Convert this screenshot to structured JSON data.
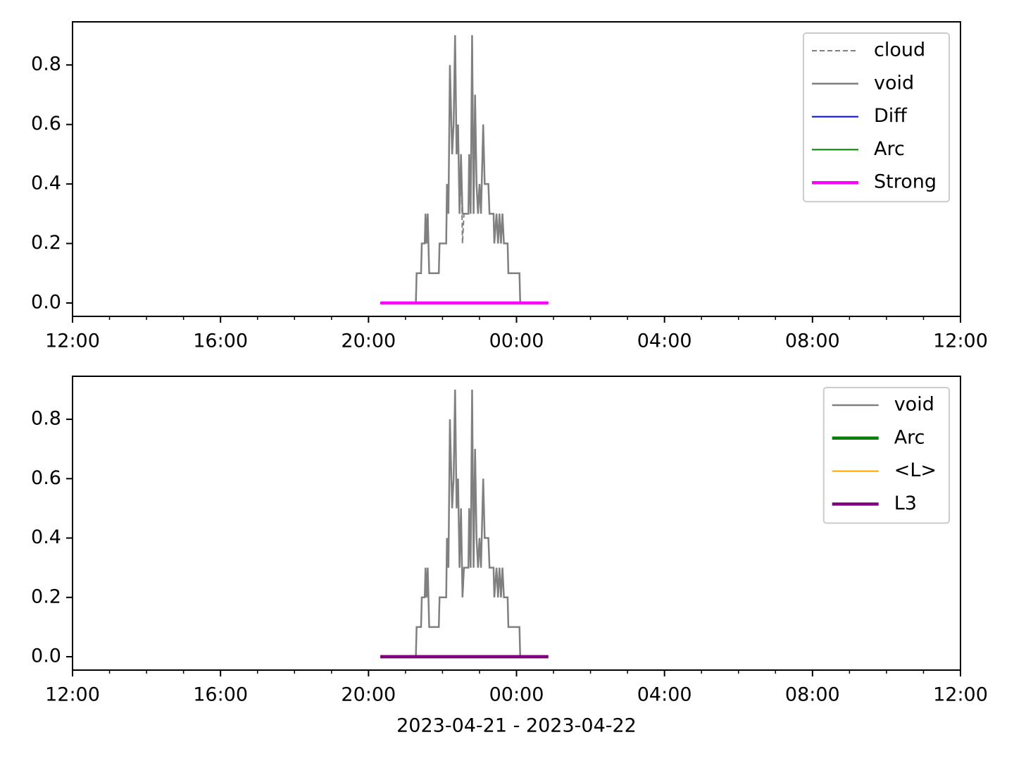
{
  "chart_data": [
    {
      "type": "line",
      "xlim": [
        12,
        36
      ],
      "ylim": [
        -0.045,
        0.945
      ],
      "xticks": [
        {
          "value": 12,
          "label": "12:00"
        },
        {
          "value": 16,
          "label": "16:00"
        },
        {
          "value": 20,
          "label": "20:00"
        },
        {
          "value": 24,
          "label": "00:00"
        },
        {
          "value": 28,
          "label": "04:00"
        },
        {
          "value": 32,
          "label": "08:00"
        },
        {
          "value": 36,
          "label": "12:00"
        }
      ],
      "xminorticks": [
        13,
        14,
        15,
        17,
        18,
        19,
        21,
        22,
        23,
        25,
        26,
        27,
        29,
        30,
        31,
        33,
        34,
        35
      ],
      "yticks": [
        {
          "value": 0,
          "label": "0.0"
        },
        0.2,
        0.4,
        0.6,
        0.8
      ],
      "legend": "upper right",
      "series": [
        {
          "name": "cloud",
          "color": "#808080",
          "width": 2,
          "dash": true,
          "x": [
            21.2,
            21.28,
            21.3,
            21.42,
            21.44,
            21.52,
            21.54,
            21.57,
            21.6,
            21.64,
            21.9,
            21.92,
            22.1,
            22.12,
            22.16,
            22.2,
            22.26,
            22.3,
            22.34,
            22.38,
            22.42,
            22.46,
            22.5,
            22.54,
            22.58,
            22.7,
            22.72,
            22.76,
            22.8,
            22.84,
            22.88,
            22.92,
            22.96,
            23.0,
            23.04,
            23.1,
            23.14,
            23.24,
            23.27,
            23.38,
            23.4,
            23.46,
            23.5,
            23.54,
            23.58,
            23.62,
            23.66,
            23.76,
            23.78,
            24.08,
            24.1,
            24.2
          ],
          "values": [
            0,
            0,
            0.1,
            0.1,
            0.2,
            0.2,
            0.3,
            0.2,
            0.3,
            0.1,
            0.1,
            0.2,
            0.2,
            0.4,
            0.3,
            0.8,
            0.5,
            0.6,
            0.9,
            0.5,
            0.6,
            0.3,
            0.5,
            0.2,
            0.3,
            0.3,
            0.5,
            0.3,
            0.9,
            0.3,
            0.7,
            0.4,
            0.3,
            0.4,
            0.3,
            0.6,
            0.4,
            0.4,
            0.3,
            0.3,
            0.2,
            0.3,
            0.2,
            0.3,
            0.2,
            0.3,
            0.2,
            0.2,
            0.1,
            0.1,
            0,
            0
          ]
        },
        {
          "name": "void",
          "color": "#808080",
          "width": 2.5,
          "x": [
            21.2,
            21.28,
            21.3,
            21.42,
            21.44,
            21.52,
            21.54,
            21.57,
            21.6,
            21.64,
            21.9,
            21.92,
            22.1,
            22.12,
            22.16,
            22.2,
            22.26,
            22.3,
            22.34,
            22.38,
            22.42,
            22.46,
            22.5,
            22.54,
            22.58,
            22.7,
            22.72,
            22.76,
            22.8,
            22.84,
            22.88,
            22.92,
            22.96,
            23.0,
            23.04,
            23.1,
            23.14,
            23.24,
            23.27,
            23.38,
            23.4,
            23.46,
            23.5,
            23.54,
            23.58,
            23.62,
            23.66,
            23.76,
            23.78,
            24.08,
            24.1,
            24.2
          ],
          "values": [
            0,
            0,
            0.1,
            0.1,
            0.2,
            0.2,
            0.3,
            0.2,
            0.3,
            0.1,
            0.1,
            0.2,
            0.2,
            0.4,
            0.3,
            0.8,
            0.5,
            0.6,
            0.9,
            0.5,
            0.6,
            0.3,
            0.5,
            0.3,
            0.3,
            0.3,
            0.5,
            0.3,
            0.9,
            0.3,
            0.7,
            0.4,
            0.3,
            0.4,
            0.3,
            0.6,
            0.4,
            0.4,
            0.3,
            0.3,
            0.2,
            0.3,
            0.2,
            0.3,
            0.2,
            0.3,
            0.2,
            0.2,
            0.1,
            0.1,
            0,
            0
          ]
        },
        {
          "name": "Diff",
          "color": "#0000ff",
          "width": 2,
          "x": [
            20.32,
            24.86
          ],
          "values": [
            0,
            0
          ]
        },
        {
          "name": "Arc",
          "color": "#008000",
          "width": 2,
          "x": [
            20.32,
            24.86
          ],
          "values": [
            0,
            0
          ]
        },
        {
          "name": "Strong",
          "color": "#ff00ff",
          "width": 4.5,
          "x": [
            20.32,
            24.86
          ],
          "values": [
            0,
            0
          ]
        }
      ]
    },
    {
      "type": "line",
      "xlabel": "2023-04-21 - 2023-04-22",
      "xlim": [
        12,
        36
      ],
      "ylim": [
        -0.045,
        0.945
      ],
      "xticks": [
        {
          "value": 12,
          "label": "12:00"
        },
        {
          "value": 16,
          "label": "16:00"
        },
        {
          "value": 20,
          "label": "20:00"
        },
        {
          "value": 24,
          "label": "00:00"
        },
        {
          "value": 28,
          "label": "04:00"
        },
        {
          "value": 32,
          "label": "08:00"
        },
        {
          "value": 36,
          "label": "12:00"
        }
      ],
      "xminorticks": [
        13,
        14,
        15,
        17,
        18,
        19,
        21,
        22,
        23,
        25,
        26,
        27,
        29,
        30,
        31,
        33,
        34,
        35
      ],
      "yticks": [
        {
          "value": 0,
          "label": "0.0"
        },
        0.2,
        0.4,
        0.6,
        0.8
      ],
      "legend": "upper right",
      "series": [
        {
          "name": "void",
          "color": "#808080",
          "width": 2.5,
          "x": [
            21.2,
            21.28,
            21.3,
            21.42,
            21.44,
            21.52,
            21.54,
            21.57,
            21.6,
            21.64,
            21.9,
            21.92,
            22.1,
            22.12,
            22.16,
            22.2,
            22.26,
            22.3,
            22.34,
            22.38,
            22.42,
            22.46,
            22.5,
            22.54,
            22.58,
            22.7,
            22.72,
            22.76,
            22.8,
            22.84,
            22.88,
            22.92,
            22.96,
            23.0,
            23.04,
            23.1,
            23.14,
            23.24,
            23.27,
            23.38,
            23.4,
            23.46,
            23.5,
            23.54,
            23.58,
            23.62,
            23.66,
            23.76,
            23.78,
            24.08,
            24.1,
            24.2
          ],
          "values": [
            0,
            0,
            0.1,
            0.1,
            0.2,
            0.2,
            0.3,
            0.2,
            0.3,
            0.1,
            0.1,
            0.2,
            0.2,
            0.4,
            0.3,
            0.8,
            0.5,
            0.6,
            0.9,
            0.5,
            0.6,
            0.3,
            0.5,
            0.2,
            0.3,
            0.3,
            0.5,
            0.3,
            0.9,
            0.3,
            0.7,
            0.4,
            0.3,
            0.4,
            0.3,
            0.6,
            0.4,
            0.4,
            0.3,
            0.3,
            0.2,
            0.3,
            0.2,
            0.3,
            0.2,
            0.3,
            0.2,
            0.2,
            0.1,
            0.1,
            0,
            0
          ]
        },
        {
          "name": "Arc",
          "color": "#008000",
          "width": 4.5,
          "x": [
            20.32,
            24.86
          ],
          "values": [
            0,
            0
          ]
        },
        {
          "name": "<L>",
          "color": "#ffa500",
          "width": 2,
          "x": [
            20.32,
            24.86
          ],
          "values": [
            0,
            0
          ]
        },
        {
          "name": "L3",
          "color": "#800080",
          "width": 4.5,
          "x": [
            20.32,
            24.86
          ],
          "values": [
            0,
            0
          ]
        }
      ]
    }
  ]
}
